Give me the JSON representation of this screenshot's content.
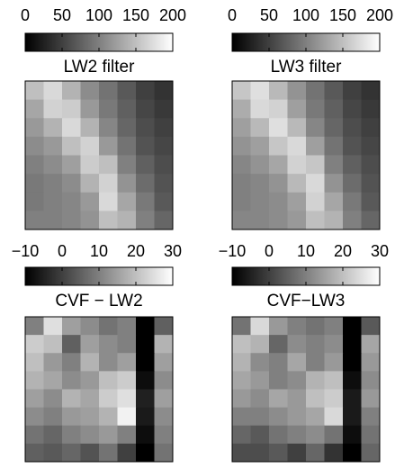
{
  "chart_data": [
    {
      "type": "heatmap",
      "title": "LW2 filter",
      "clim": [
        0,
        200
      ],
      "cticks": [
        0,
        50,
        100,
        150,
        200
      ],
      "values": [
        [
          150,
          170,
          140,
          110,
          90,
          70,
          50,
          40
        ],
        [
          130,
          165,
          160,
          120,
          95,
          75,
          55,
          45
        ],
        [
          120,
          140,
          170,
          140,
          105,
          80,
          60,
          50
        ],
        [
          110,
          120,
          150,
          165,
          120,
          90,
          65,
          55
        ],
        [
          100,
          110,
          125,
          160,
          150,
          100,
          75,
          60
        ],
        [
          95,
          100,
          110,
          140,
          165,
          115,
          85,
          65
        ],
        [
          95,
          100,
          105,
          120,
          170,
          130,
          95,
          70
        ],
        [
          100,
          100,
          105,
          115,
          150,
          140,
          100,
          80
        ]
      ]
    },
    {
      "type": "heatmap",
      "title": "LW3 filter",
      "clim": [
        0,
        200
      ],
      "cticks": [
        0,
        50,
        100,
        150,
        200
      ],
      "values": [
        [
          155,
          175,
          145,
          115,
          90,
          70,
          50,
          40
        ],
        [
          135,
          170,
          165,
          125,
          95,
          75,
          55,
          45
        ],
        [
          125,
          145,
          175,
          145,
          105,
          80,
          60,
          50
        ],
        [
          115,
          125,
          155,
          170,
          125,
          90,
          65,
          55
        ],
        [
          105,
          115,
          130,
          165,
          155,
          100,
          75,
          60
        ],
        [
          100,
          105,
          115,
          145,
          170,
          115,
          85,
          65
        ],
        [
          100,
          105,
          110,
          125,
          165,
          130,
          95,
          70
        ],
        [
          105,
          105,
          110,
          120,
          150,
          140,
          100,
          80
        ]
      ]
    },
    {
      "type": "heatmap",
      "title": "CVF − LW2",
      "clim": [
        -10,
        30
      ],
      "cticks": [
        {
          "value": -10,
          "label": "−10"
        },
        0,
        10,
        20,
        30
      ],
      "values": [
        [
          10,
          25,
          15,
          12,
          8,
          10,
          -10,
          5
        ],
        [
          22,
          20,
          5,
          15,
          12,
          10,
          -10,
          18
        ],
        [
          20,
          14,
          10,
          18,
          12,
          15,
          -10,
          15
        ],
        [
          18,
          16,
          12,
          14,
          20,
          22,
          -8,
          12
        ],
        [
          15,
          12,
          18,
          16,
          22,
          25,
          -5,
          15
        ],
        [
          12,
          10,
          14,
          15,
          18,
          28,
          -6,
          12
        ],
        [
          8,
          6,
          10,
          12,
          14,
          10,
          -8,
          10
        ],
        [
          5,
          4,
          6,
          3,
          8,
          0,
          -10,
          8
        ]
      ]
    },
    {
      "type": "heatmap",
      "title": "CVF−LW3",
      "clim": [
        -10,
        30
      ],
      "cticks": [
        {
          "value": -10,
          "label": "−10"
        },
        0,
        10,
        20,
        30
      ],
      "values": [
        [
          8,
          24,
          14,
          10,
          8,
          10,
          -10,
          4
        ],
        [
          20,
          18,
          6,
          12,
          10,
          12,
          -10,
          16
        ],
        [
          18,
          12,
          10,
          16,
          10,
          14,
          -10,
          14
        ],
        [
          16,
          14,
          10,
          12,
          18,
          20,
          -8,
          12
        ],
        [
          14,
          12,
          16,
          14,
          20,
          22,
          -6,
          14
        ],
        [
          10,
          10,
          12,
          14,
          16,
          24,
          -6,
          10
        ],
        [
          6,
          4,
          8,
          10,
          12,
          8,
          -8,
          8
        ],
        [
          2,
          2,
          4,
          0,
          6,
          -2,
          -10,
          6
        ]
      ]
    }
  ]
}
